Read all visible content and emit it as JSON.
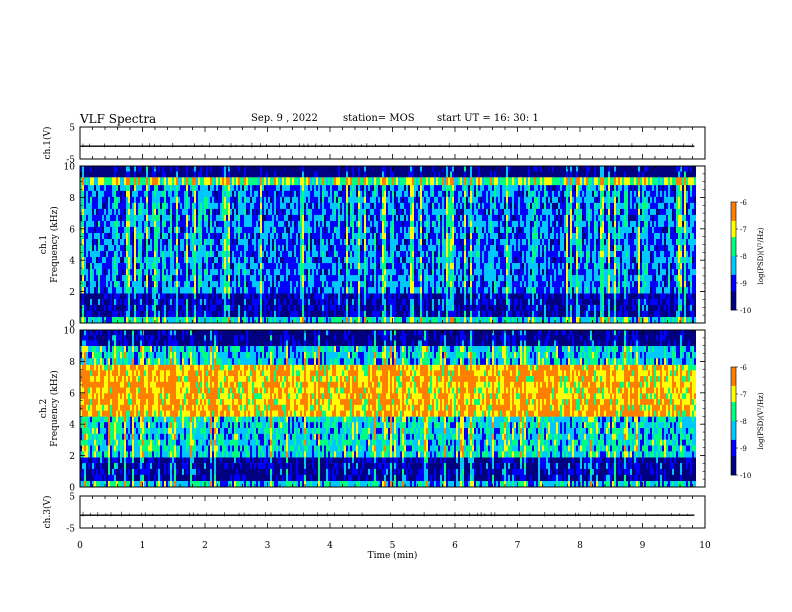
{
  "header": {
    "title": "VLF Spectra",
    "date": "Sep. 9 , 2022",
    "station": "station= MOS",
    "start": "start  UT =   16: 30: 1"
  },
  "chart_data": [
    {
      "id": "ch1-waveform",
      "type": "line",
      "ylabel": "ch.1(V)",
      "ylim": [
        -5,
        5
      ],
      "yticks": [
        5,
        -5
      ],
      "xlim": [
        0,
        10
      ],
      "baseline": -1,
      "values_note": "",
      "color": "#000000"
    },
    {
      "id": "ch1-spectrogram",
      "type": "heatmap",
      "ylabel": "ch.1\nFrequency (kHz)",
      "ylim": [
        0,
        10
      ],
      "yticks": [
        0,
        2,
        4,
        6,
        8,
        10
      ],
      "xlim": [
        0,
        10
      ],
      "zlabel": "log(PSD)(V²/Hz)",
      "zlim": [
        -10,
        -6
      ],
      "zticks": [
        -6,
        -7,
        -8,
        -9,
        -10
      ],
      "bands": [
        {
          "f_from": 0,
          "f_to": 0.4,
          "level": -8.2
        },
        {
          "f_from": 0.4,
          "f_to": 1.9,
          "level": -9.6
        },
        {
          "f_from": 1.9,
          "f_to": 8.8,
          "level": -8.8
        },
        {
          "f_from": 8.8,
          "f_to": 9.3,
          "level": -7.6
        },
        {
          "f_from": 9.3,
          "f_to": 10,
          "level": -10
        }
      ]
    },
    {
      "id": "ch2-spectrogram",
      "type": "heatmap",
      "ylabel": "ch.2\nFrequency (kHz)",
      "ylim": [
        0,
        10
      ],
      "yticks": [
        0,
        2,
        4,
        6,
        8,
        10
      ],
      "xlim": [
        0,
        10
      ],
      "zlabel": "log(PSD)(V²/Hz)",
      "zlim": [
        -10,
        -6
      ],
      "zticks": [
        -6,
        -7,
        -8,
        -9,
        -10
      ],
      "bands": [
        {
          "f_from": 0,
          "f_to": 0.4,
          "level": -8.4
        },
        {
          "f_from": 0.4,
          "f_to": 1.9,
          "level": -9.7
        },
        {
          "f_from": 1.9,
          "f_to": 4.5,
          "level": -8.3
        },
        {
          "f_from": 4.5,
          "f_to": 7.8,
          "level": -6.9
        },
        {
          "f_from": 7.8,
          "f_to": 9.0,
          "level": -8.4
        },
        {
          "f_from": 9.0,
          "f_to": 10,
          "level": -9.9
        }
      ]
    },
    {
      "id": "ch3-waveform",
      "type": "line",
      "ylabel": "ch.3(V)",
      "ylim": [
        -5,
        5
      ],
      "yticks": [
        5,
        -5
      ],
      "xlim": [
        0,
        10
      ],
      "baseline": -1,
      "color": "#000000"
    }
  ],
  "xaxis": {
    "label": "Time  (min)",
    "ticks": [
      0,
      1,
      2,
      3,
      4,
      5,
      6,
      7,
      8,
      9,
      10
    ],
    "data_end": 9.83
  },
  "colorscale": [
    "#000080",
    "#0000ff",
    "#00c8ff",
    "#00ff80",
    "#ffff00",
    "#ff8000",
    "#ff0000",
    "#ffffff"
  ]
}
